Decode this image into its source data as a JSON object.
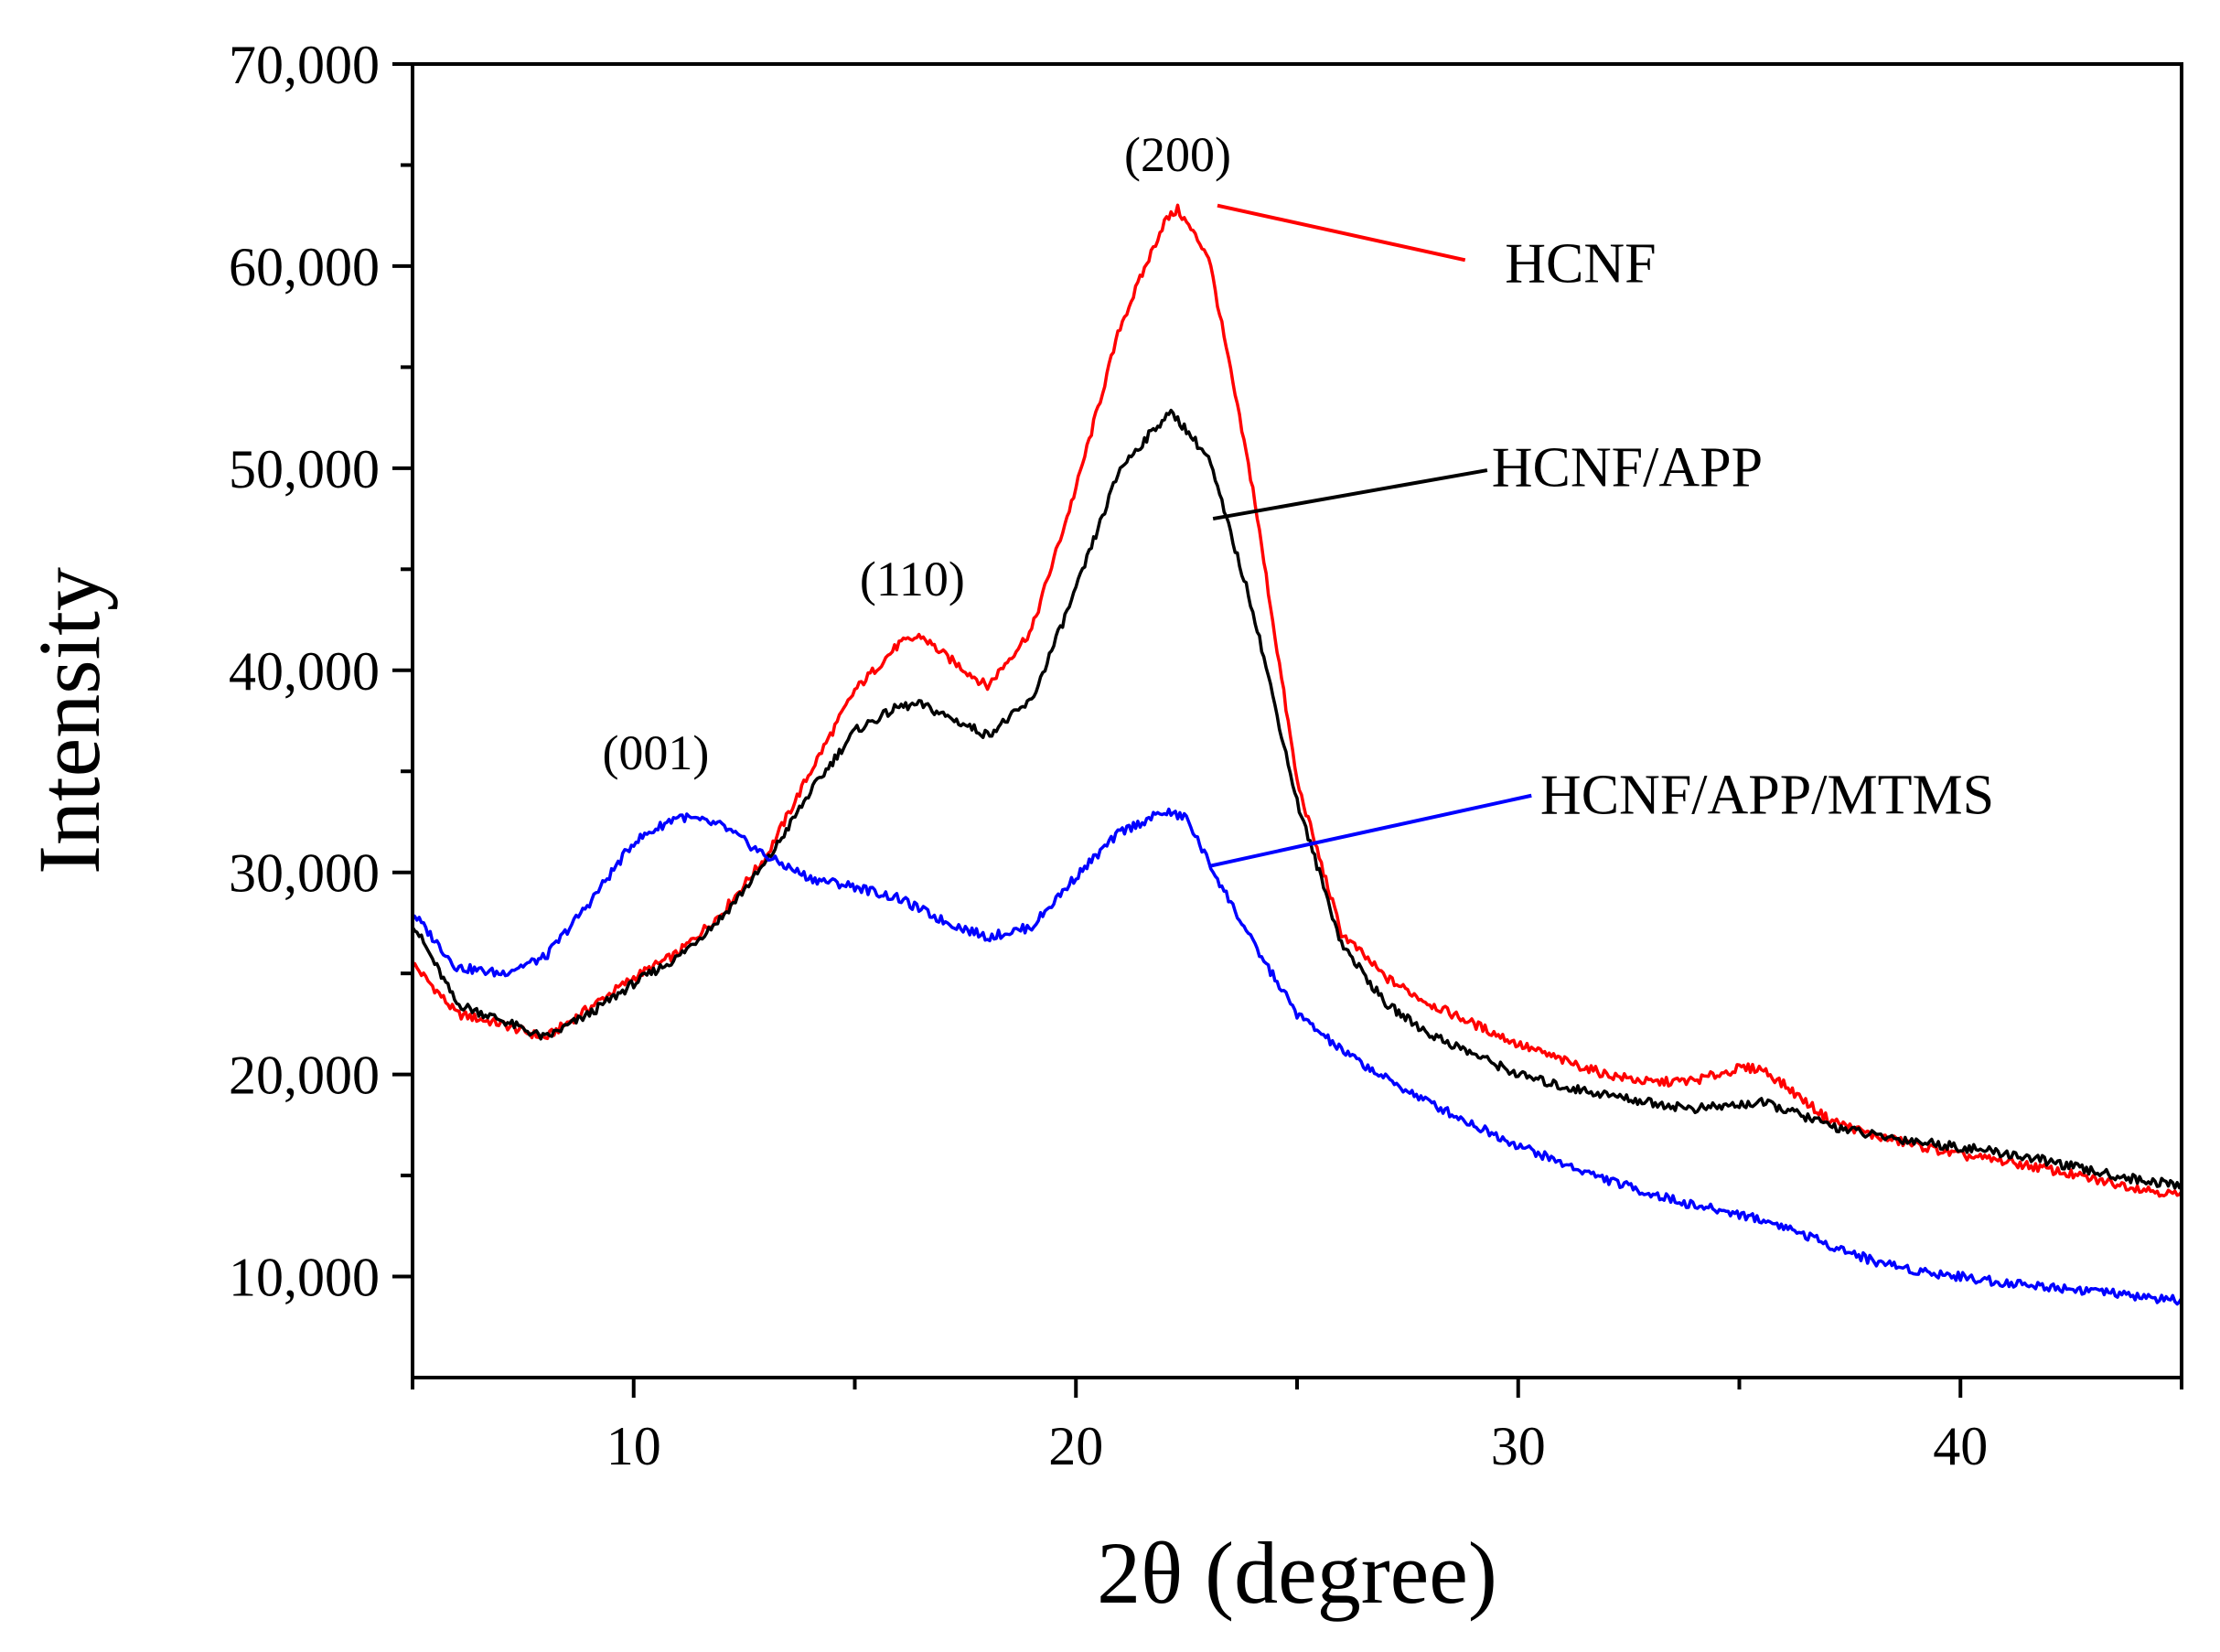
{
  "chart_data": {
    "type": "line",
    "title": "",
    "xlabel": "2θ (degree)",
    "ylabel": "Intensity",
    "xlim": [
      5,
      45
    ],
    "ylim": [
      5000,
      70000
    ],
    "x_ticks": [
      10,
      20,
      30,
      40
    ],
    "x_tick_labels": [
      "10",
      "20",
      "30",
      "40"
    ],
    "y_ticks": [
      10000,
      20000,
      30000,
      40000,
      50000,
      60000,
      70000
    ],
    "y_tick_labels": [
      "10,000",
      "20,000",
      "30,000",
      "40,000",
      "50,000",
      "60,000",
      "70,000"
    ],
    "grid": false,
    "legend": "inline labels with leader lines",
    "series": [
      {
        "name": "HCNF",
        "color": "#ff0000",
        "x": [
          5,
          6,
          7,
          8,
          9,
          10,
          11,
          12,
          13,
          14,
          15,
          16,
          16.5,
          17,
          18,
          19,
          20,
          21,
          22,
          22.3,
          23,
          24,
          25,
          26,
          27,
          28,
          29,
          30,
          31,
          32,
          33,
          34,
          35,
          35.5,
          36,
          37,
          38,
          39,
          40,
          41,
          42,
          43,
          44,
          45
        ],
        "y": [
          25500,
          23000,
          22500,
          21800,
          23300,
          24800,
          26000,
          28000,
          30800,
          35000,
          39000,
          41300,
          41700,
          40800,
          39200,
          42000,
          49000,
          57000,
          62200,
          62800,
          60500,
          49000,
          34500,
          27000,
          24800,
          23500,
          22500,
          21500,
          20700,
          20000,
          19600,
          19700,
          20300,
          20300,
          19500,
          17800,
          17000,
          16500,
          16000,
          15700,
          15300,
          14800,
          14400,
          14000
        ]
      },
      {
        "name": "HCNF/APP",
        "color": "#000000",
        "x": [
          5,
          6,
          7,
          8,
          9,
          10,
          11,
          12,
          13,
          14,
          15,
          16,
          16.5,
          17,
          18,
          19,
          20,
          21,
          22,
          22.2,
          23,
          24,
          25,
          26,
          27,
          28,
          29,
          30,
          31,
          32,
          33,
          34,
          35,
          35.5,
          36,
          37,
          38,
          39,
          40,
          41,
          42,
          43,
          44,
          45
        ],
        "y": [
          27500,
          23500,
          22700,
          21800,
          23000,
          24500,
          25800,
          27800,
          30500,
          34000,
          37000,
          38200,
          38300,
          37800,
          36800,
          38500,
          44000,
          50000,
          52500,
          52700,
          50500,
          43000,
          33500,
          26500,
          23500,
          22000,
          21000,
          20000,
          19400,
          19000,
          18600,
          18300,
          18500,
          18600,
          18300,
          17500,
          17000,
          16700,
          16400,
          16100,
          15700,
          15200,
          14800,
          14500
        ]
      },
      {
        "name": "HCNF/APP/MTMS",
        "color": "#0000ff",
        "x": [
          5,
          6,
          7,
          8,
          9,
          10,
          11,
          12,
          13,
          14,
          15,
          16,
          17,
          18,
          19,
          20,
          21,
          22,
          22.5,
          23,
          24,
          25,
          26,
          27,
          28,
          29,
          30,
          31,
          32,
          33,
          34,
          35,
          36,
          37,
          38,
          39,
          40,
          41,
          42,
          43,
          44,
          45
        ],
        "y": [
          28000,
          25300,
          25000,
          25800,
          28500,
          31500,
          32800,
          32300,
          30800,
          29700,
          29300,
          28700,
          27600,
          26800,
          27300,
          29800,
          32000,
          33000,
          32700,
          30500,
          26500,
          23000,
          21200,
          19800,
          18600,
          17500,
          16500,
          15600,
          14800,
          14100,
          13500,
          13100,
          12500,
          11600,
          10800,
          10300,
          10000,
          9700,
          9500,
          9300,
          9000,
          8800
        ]
      }
    ],
    "annotations": [
      {
        "text": "(001)",
        "x": 10.5,
        "y": 35100
      },
      {
        "text": "(110)",
        "x": 16.3,
        "y": 43700
      },
      {
        "text": "(200)",
        "x": 22.3,
        "y": 64700
      }
    ],
    "series_labels": [
      {
        "series": "HCNF",
        "text": "HCNF",
        "label_x": 29.7,
        "label_y": 60200,
        "from_x": 23.2,
        "from_y": 63000,
        "to_x": 28.8,
        "to_y": 60300
      },
      {
        "series": "HCNF/APP",
        "text": "HCNF/APP",
        "label_x": 29.4,
        "label_y": 50100,
        "from_x": 23.1,
        "from_y": 47500,
        "to_x": 29.3,
        "to_y": 49900
      },
      {
        "series": "HCNF/APP/MTMS",
        "text": "HCNF/APP/MTMS",
        "label_x": 30.5,
        "label_y": 33900,
        "from_x": 23.0,
        "from_y": 30300,
        "to_x": 30.3,
        "to_y": 33800
      }
    ]
  }
}
